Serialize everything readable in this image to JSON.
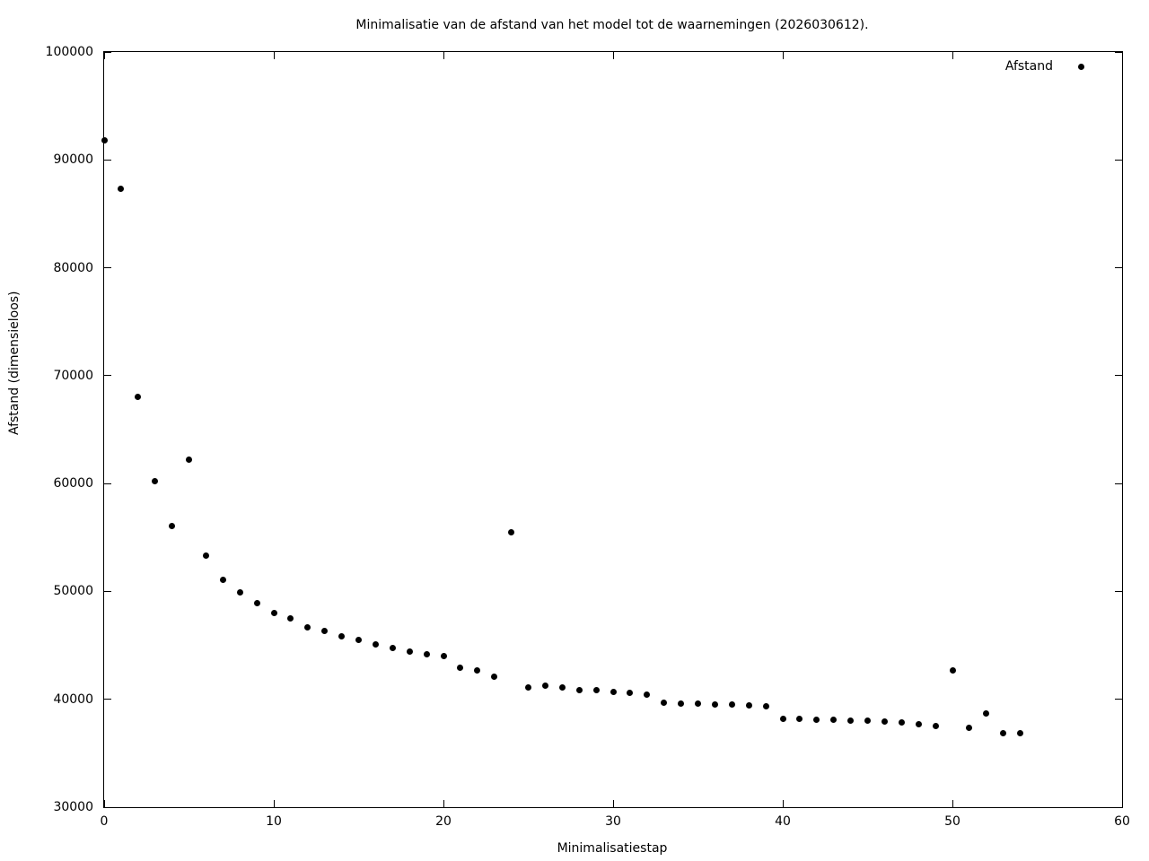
{
  "colors": {
    "background": "#ffffff",
    "foreground": "#000000",
    "marker": "#000000"
  },
  "chart_data": {
    "type": "scatter",
    "title": "Minimalisatie van de afstand van het model tot de waarnemingen (2026030612).",
    "xlabel": "Minimalisatiestap",
    "ylabel": "Afstand (dimensieloos)",
    "xlim": [
      0,
      60
    ],
    "ylim": [
      30000,
      100000
    ],
    "x_ticks": [
      0,
      10,
      20,
      30,
      40,
      50,
      60
    ],
    "y_ticks": [
      30000,
      40000,
      50000,
      60000,
      70000,
      80000,
      90000,
      100000
    ],
    "grid": false,
    "marker_style": "filled-circle",
    "legend": {
      "position": "inside-top-right",
      "entries": [
        {
          "label": "Afstand",
          "marker": "dot",
          "color": "#000000"
        }
      ]
    },
    "series": [
      {
        "name": "Afstand",
        "color": "#000000",
        "points": [
          [
            0,
            91800
          ],
          [
            1,
            87300
          ],
          [
            2,
            68000
          ],
          [
            3,
            60250
          ],
          [
            4,
            56100
          ],
          [
            5,
            62200
          ],
          [
            6,
            53300
          ],
          [
            7,
            51100
          ],
          [
            8,
            49870
          ],
          [
            9,
            48880
          ],
          [
            10,
            48040
          ],
          [
            11,
            47540
          ],
          [
            12,
            46630
          ],
          [
            13,
            46300
          ],
          [
            14,
            45800
          ],
          [
            15,
            45470
          ],
          [
            16,
            45130
          ],
          [
            17,
            44720
          ],
          [
            18,
            44390
          ],
          [
            19,
            44140
          ],
          [
            20,
            43970
          ],
          [
            21,
            42890
          ],
          [
            22,
            42640
          ],
          [
            23,
            42100
          ],
          [
            24,
            55450
          ],
          [
            25,
            41060
          ],
          [
            26,
            41230
          ],
          [
            27,
            41060
          ],
          [
            28,
            40890
          ],
          [
            29,
            40890
          ],
          [
            30,
            40700
          ],
          [
            31,
            40560
          ],
          [
            32,
            40420
          ],
          [
            33,
            39650
          ],
          [
            34,
            39600
          ],
          [
            35,
            39580
          ],
          [
            36,
            39520
          ],
          [
            37,
            39490
          ],
          [
            38,
            39400
          ],
          [
            39,
            39320
          ],
          [
            40,
            38150
          ],
          [
            41,
            38150
          ],
          [
            42,
            38070
          ],
          [
            43,
            38070
          ],
          [
            44,
            37990
          ],
          [
            45,
            37990
          ],
          [
            46,
            37900
          ],
          [
            47,
            37820
          ],
          [
            48,
            37650
          ],
          [
            49,
            37490
          ],
          [
            50,
            42660
          ],
          [
            51,
            37320
          ],
          [
            52,
            38650
          ],
          [
            53,
            36870
          ],
          [
            54,
            36870
          ]
        ]
      }
    ]
  }
}
